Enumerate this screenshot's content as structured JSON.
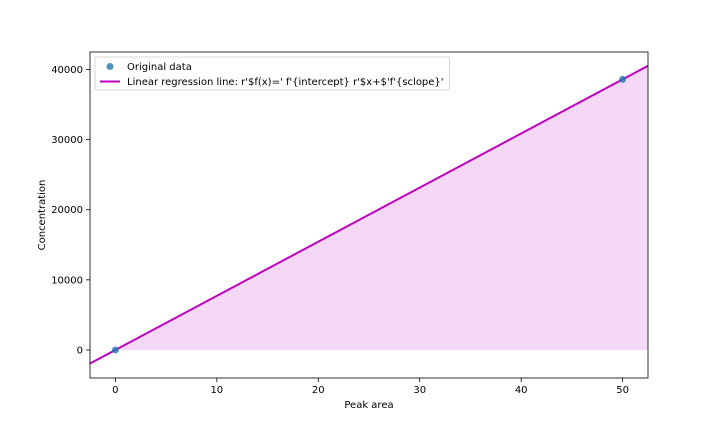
{
  "chart_data": {
    "type": "scatter",
    "xlabel": "Peak area",
    "ylabel": "Concentration",
    "xlim": [
      -2.5,
      52.5
    ],
    "ylim": [
      -4000,
      42500
    ],
    "xticks": [
      0,
      10,
      20,
      30,
      40,
      50
    ],
    "yticks": [
      0,
      10000,
      20000,
      30000,
      40000
    ],
    "grid": false,
    "legend_position": "top-left",
    "series": [
      {
        "name": "Original data",
        "kind": "scatter",
        "color": "#1f77b4",
        "points": [
          {
            "x": 0,
            "y": 0
          },
          {
            "x": 50,
            "y": 38600
          }
        ]
      },
      {
        "name": "Linear regression line: r'$f(x)=' f'{intercept} r'$x+$'f'{sclope}'",
        "kind": "line",
        "color": "#bf00bf",
        "intercept": 0,
        "slope": 772
      }
    ],
    "fill": {
      "color": "#f5d8f5",
      "between": "regression line and y = 0",
      "x_from": 0,
      "x_to": 52.5
    }
  }
}
